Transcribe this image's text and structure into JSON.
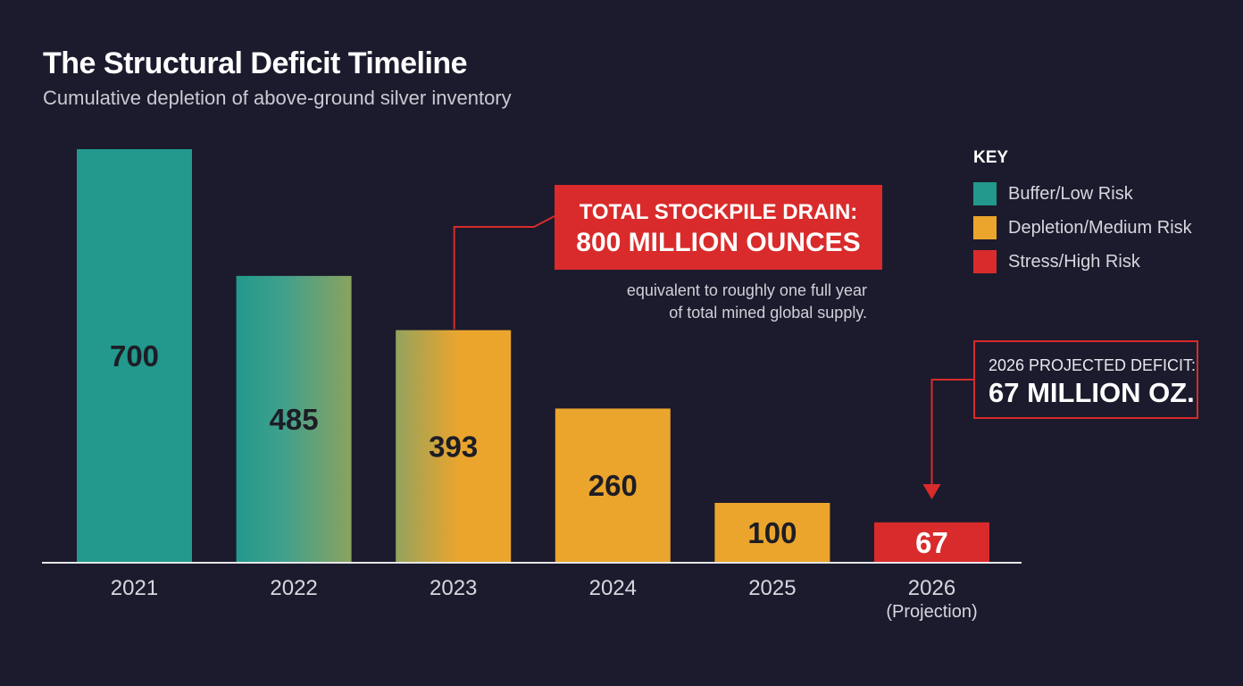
{
  "header": {
    "title": "The Structural Deficit Timeline",
    "subtitle": "Cumulative depletion of above-ground silver inventory"
  },
  "legend": {
    "title": "KEY",
    "items": [
      {
        "label": "Buffer/Low Risk",
        "color": "#22998c"
      },
      {
        "label": "Depletion/Medium Risk",
        "color": "#eba52d"
      },
      {
        "label": "Stress/High Risk",
        "color": "#d92b2b"
      }
    ]
  },
  "callouts": {
    "stockpile": {
      "line1": "TOTAL STOCKPILE DRAIN:",
      "line2": "800 MILLION OUNCES",
      "note_line1": "equivalent to roughly one full year",
      "note_line2": "of total mined global supply."
    },
    "deficit": {
      "line1": "2026 PROJECTED DEFICIT:",
      "line2": "67 MILLION OZ."
    }
  },
  "chart_data": {
    "type": "bar",
    "categories": [
      "2021",
      "2022",
      "2023",
      "2024",
      "2025",
      "2026"
    ],
    "category_notes": [
      "",
      "",
      "",
      "",
      "",
      "(Projection)"
    ],
    "values": [
      700,
      485,
      393,
      260,
      100,
      67
    ],
    "value_labels": [
      "700",
      "485",
      "393",
      "260",
      "100",
      "67"
    ],
    "bar_risk": [
      "low",
      "low-to-medium",
      "medium",
      "medium",
      "medium",
      "high"
    ],
    "ylim": [
      0,
      700
    ],
    "grid": false
  }
}
